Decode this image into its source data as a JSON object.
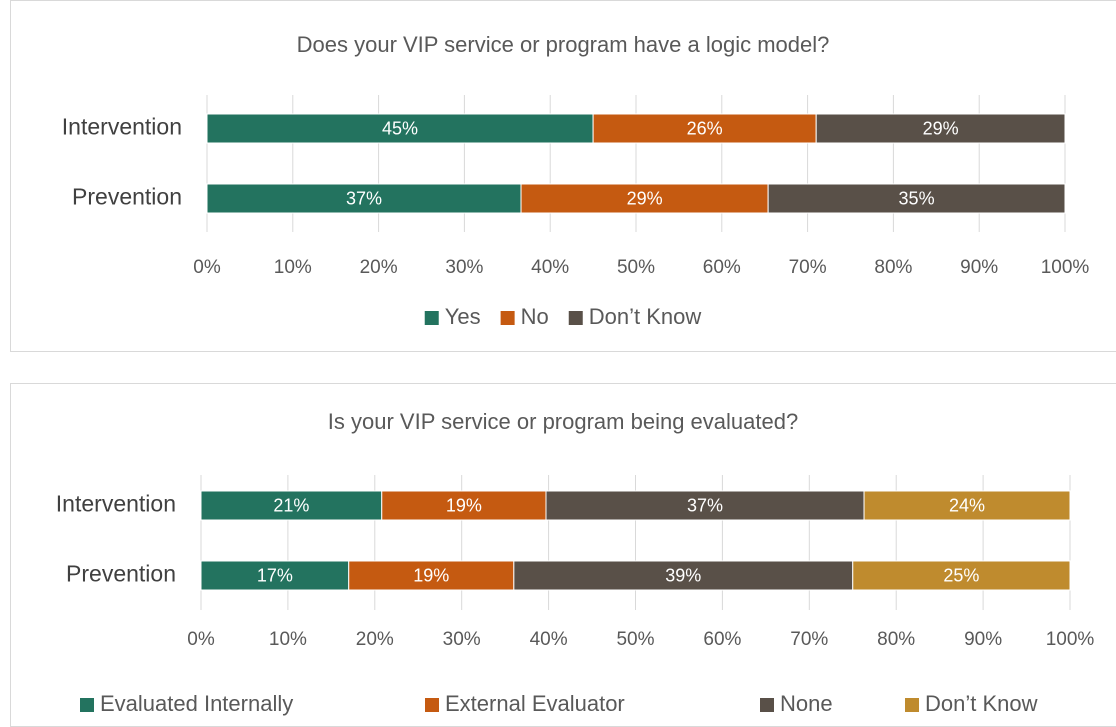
{
  "chart_data": [
    {
      "type": "bar",
      "orientation": "horizontal",
      "stacked": true,
      "title": "Does your VIP service or program have a logic model?",
      "categories": [
        "Intervention",
        "Prevention"
      ],
      "series": [
        {
          "name": "Yes",
          "color": "#23735f",
          "values": [
            45,
            36.6
          ],
          "value_labels": [
            "45%",
            "37%"
          ]
        },
        {
          "name": "No",
          "color": "#c55a11",
          "values": [
            26,
            28.8
          ],
          "value_labels": [
            "26%",
            "29%"
          ]
        },
        {
          "name": "Don’t Know",
          "color": "#595048",
          "values": [
            29,
            34.6
          ],
          "value_labels": [
            "29%",
            "35%"
          ]
        }
      ],
      "xlim": [
        0,
        100
      ],
      "xticks": [
        {
          "value": 0,
          "label": "0%"
        },
        {
          "value": 10,
          "label": "10%"
        },
        {
          "value": 20,
          "label": "20%"
        },
        {
          "value": 30,
          "label": "30%"
        },
        {
          "value": 40,
          "label": "40%"
        },
        {
          "value": 50,
          "label": "50%"
        },
        {
          "value": 60,
          "label": "60%"
        },
        {
          "value": 70,
          "label": "70%"
        },
        {
          "value": 80,
          "label": "80%"
        },
        {
          "value": 90,
          "label": "90%"
        },
        {
          "value": 100,
          "label": "100%"
        }
      ],
      "grid": true,
      "legend": "bottom"
    },
    {
      "type": "bar",
      "orientation": "horizontal",
      "stacked": true,
      "title": "Is your VIP service or program being evaluated?",
      "categories": [
        "Intervention",
        "Prevention"
      ],
      "series": [
        {
          "name": "Evaluated Internally",
          "color": "#23735f",
          "values": [
            20.8,
            17
          ],
          "value_labels": [
            "21%",
            "17%"
          ]
        },
        {
          "name": "External Evaluator",
          "color": "#c55a11",
          "values": [
            18.9,
            19
          ],
          "value_labels": [
            "19%",
            "19%"
          ]
        },
        {
          "name": "None",
          "color": "#595048",
          "values": [
            36.6,
            39
          ],
          "value_labels": [
            "37%",
            "39%"
          ]
        },
        {
          "name": "Don’t Know",
          "color": "#bf8b2e",
          "values": [
            23.7,
            25
          ],
          "value_labels": [
            "24%",
            "25%"
          ]
        }
      ],
      "xlim": [
        0,
        100
      ],
      "xticks": [
        {
          "value": 0,
          "label": "0%"
        },
        {
          "value": 10,
          "label": "10%"
        },
        {
          "value": 20,
          "label": "20%"
        },
        {
          "value": 30,
          "label": "30%"
        },
        {
          "value": 40,
          "label": "40%"
        },
        {
          "value": 50,
          "label": "50%"
        },
        {
          "value": 60,
          "label": "60%"
        },
        {
          "value": 70,
          "label": "70%"
        },
        {
          "value": 80,
          "label": "80%"
        },
        {
          "value": 90,
          "label": "90%"
        },
        {
          "value": 100,
          "label": "100%"
        }
      ],
      "grid": true,
      "legend": "bottom"
    }
  ]
}
